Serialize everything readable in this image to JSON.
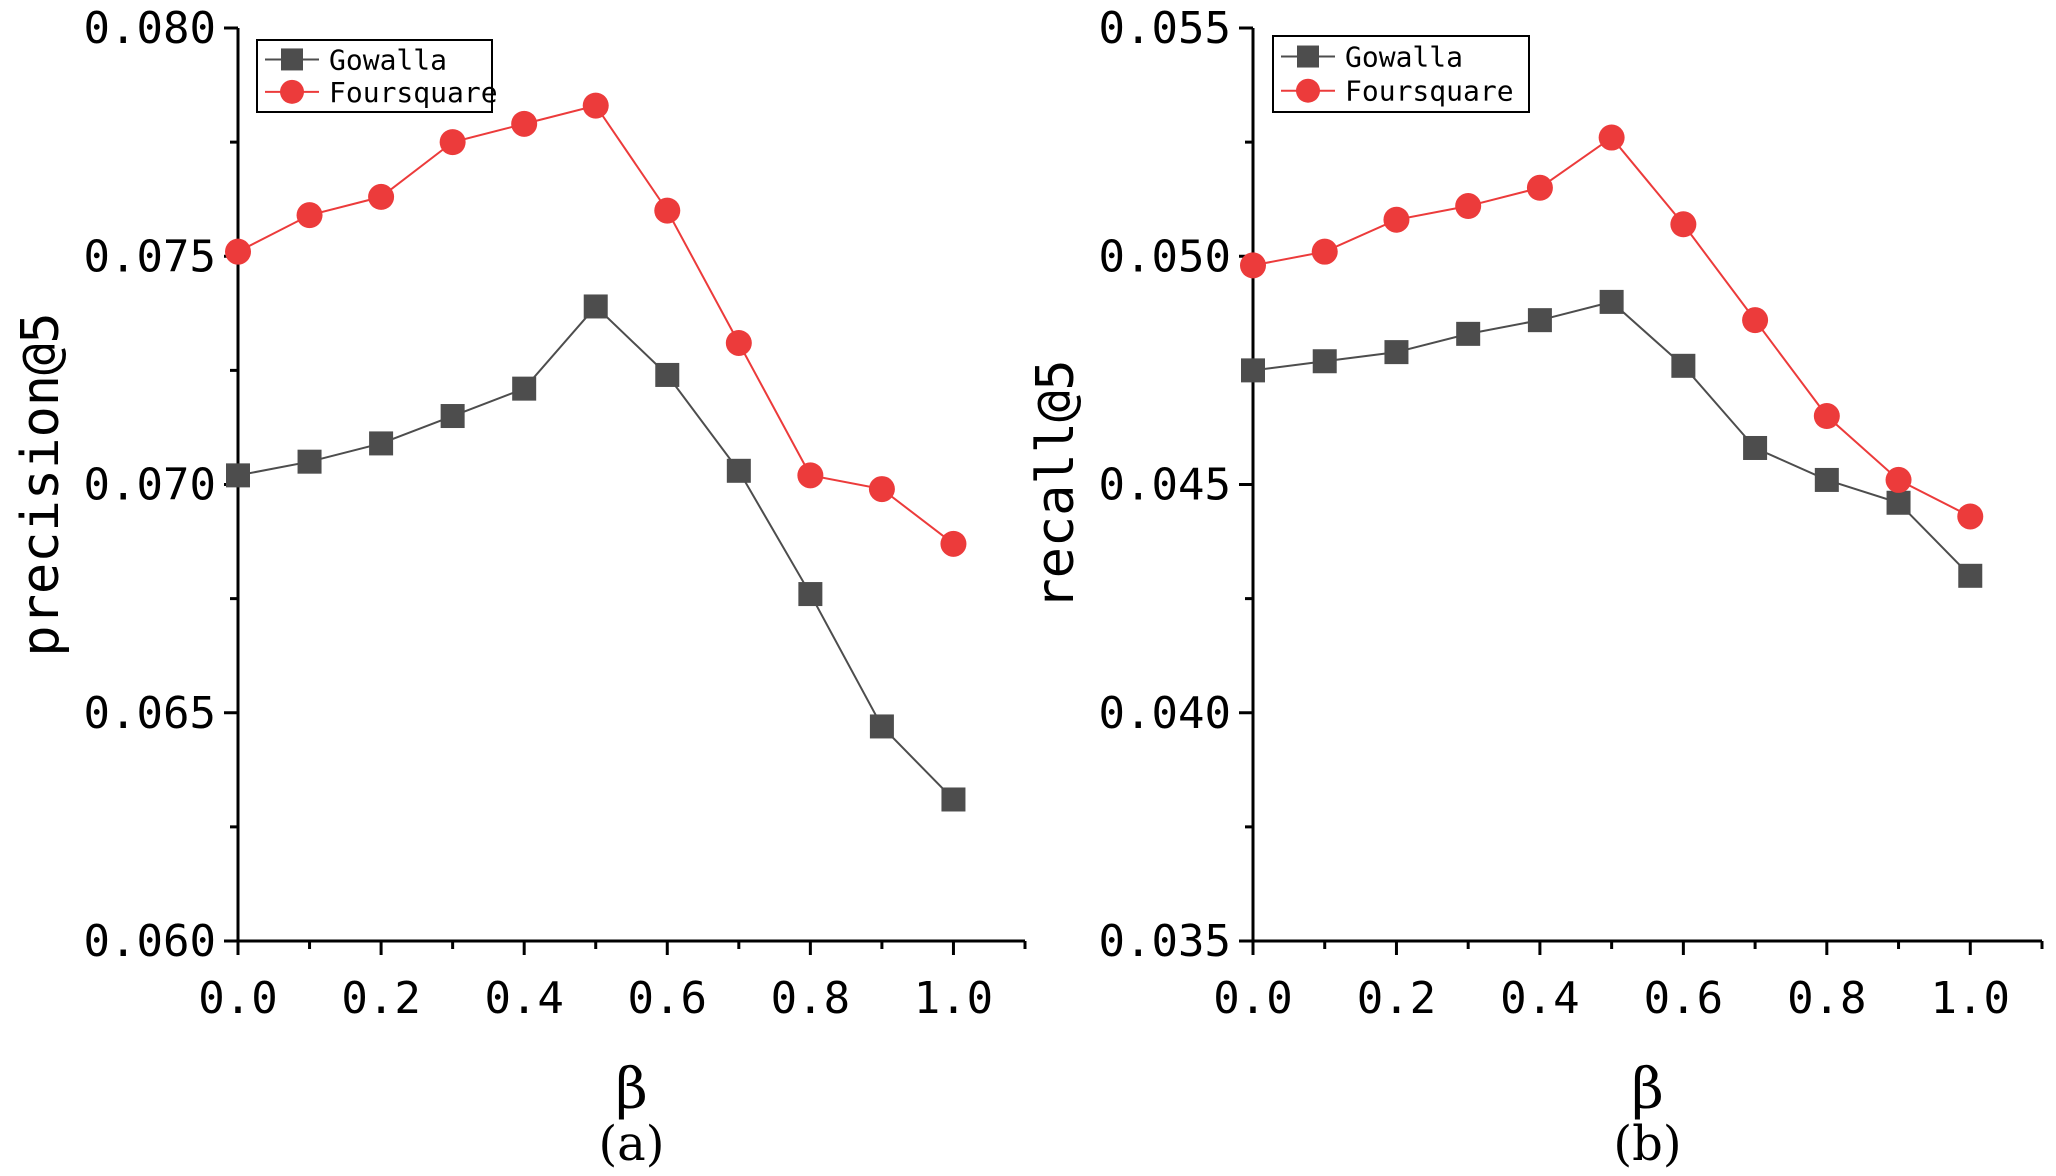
{
  "colors": {
    "gowalla": "#4d4d4d",
    "foursquare": "#ec3b3b",
    "axis": "#000000"
  },
  "chart_data": [
    {
      "type": "line",
      "caption": "(a)",
      "xlabel": "β",
      "ylabel": "precision@5",
      "xlim": [
        0.0,
        1.1
      ],
      "ylim": [
        0.06,
        0.08
      ],
      "x_tick_labels": [
        "0.0",
        "0.2",
        "0.4",
        "0.6",
        "0.8",
        "1.0"
      ],
      "y_tick_labels": [
        "0.060",
        "0.065",
        "0.070",
        "0.075",
        "0.080"
      ],
      "legend": [
        "Gowalla",
        "Foursquare"
      ],
      "x": [
        0.0,
        0.1,
        0.2,
        0.3,
        0.4,
        0.5,
        0.6,
        0.7,
        0.8,
        0.9,
        1.0
      ],
      "series": [
        {
          "name": "Gowalla",
          "marker": "square",
          "values": [
            0.0702,
            0.0705,
            0.0709,
            0.0715,
            0.0721,
            0.0739,
            0.0724,
            0.0703,
            0.0676,
            0.0647,
            0.0631
          ]
        },
        {
          "name": "Foursquare",
          "marker": "circle",
          "values": [
            0.0751,
            0.0759,
            0.0763,
            0.0775,
            0.0779,
            0.0783,
            0.076,
            0.0731,
            0.0702,
            0.0699,
            0.0687
          ]
        }
      ]
    },
    {
      "type": "line",
      "caption": "(b)",
      "xlabel": "β",
      "ylabel": "recall@5",
      "xlim": [
        0.0,
        1.1
      ],
      "ylim": [
        0.035,
        0.055
      ],
      "x_tick_labels": [
        "0.0",
        "0.2",
        "0.4",
        "0.6",
        "0.8",
        "1.0"
      ],
      "y_tick_labels": [
        "0.035",
        "0.040",
        "0.045",
        "0.050",
        "0.055"
      ],
      "legend": [
        "Gowalla",
        "Foursquare"
      ],
      "x": [
        0.0,
        0.1,
        0.2,
        0.3,
        0.4,
        0.5,
        0.6,
        0.7,
        0.8,
        0.9,
        1.0
      ],
      "series": [
        {
          "name": "Gowalla",
          "marker": "square",
          "values": [
            0.0475,
            0.0477,
            0.0479,
            0.0483,
            0.0486,
            0.049,
            0.0476,
            0.0458,
            0.0451,
            0.0446,
            0.043
          ]
        },
        {
          "name": "Foursquare",
          "marker": "circle",
          "values": [
            0.0498,
            0.0501,
            0.0508,
            0.0511,
            0.0515,
            0.0526,
            0.0507,
            0.0486,
            0.0465,
            0.0451,
            0.0443
          ]
        }
      ]
    }
  ]
}
